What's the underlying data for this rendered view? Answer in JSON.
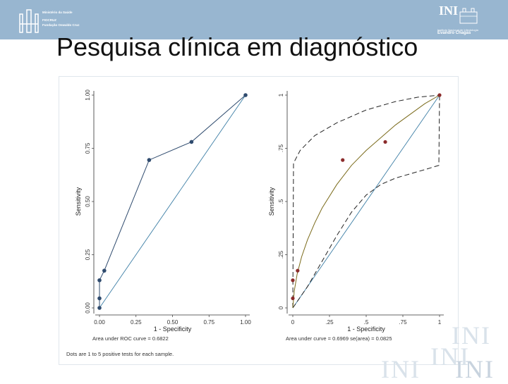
{
  "header": {
    "org_line1": "Ministério da Saúde",
    "org_line2": "FIOCRUZ",
    "org_line3": "Fundação Oswaldo Cruz",
    "ini_logo_text": "INI",
    "ini_caption_line1": "Instituto Nacional de Infectologia",
    "ini_caption_line2": "Evandro Chagas"
  },
  "slide": {
    "title": "Pesquisa clínica em diagnóstico"
  },
  "watermark": {
    "text": "INI"
  },
  "colors": {
    "topbar": "#98b6d0",
    "empirical_line": "#2f4b6e",
    "fitted_curve": "#7a6a1a",
    "points_right": "#8b2b2b",
    "reference_line": "#3e7fa6"
  },
  "chart_data": [
    {
      "type": "line",
      "xlabel": "1 - Specificity",
      "ylabel": "Sensitivity",
      "x_ticks": [
        "0.00",
        "0.25",
        "0.50",
        "0.75",
        "1.00"
      ],
      "y_ticks": [
        "0.00",
        "0.25",
        "0.50",
        "0.75",
        "1.00"
      ],
      "xlim": [
        0,
        1
      ],
      "ylim": [
        0,
        1
      ],
      "points": [
        {
          "x": 0.0,
          "y": 0.0
        },
        {
          "x": 0.0,
          "y": 0.045
        },
        {
          "x": 0.0,
          "y": 0.13
        },
        {
          "x": 0.033,
          "y": 0.175
        },
        {
          "x": 0.34,
          "y": 0.695
        },
        {
          "x": 0.63,
          "y": 0.78
        },
        {
          "x": 1.0,
          "y": 1.0
        }
      ],
      "annotation": "Area under ROC curve = 0.6822",
      "footnote": "Dots are 1 to 5 positive tests for each sample."
    },
    {
      "type": "line",
      "xlabel": "1 - Specificity",
      "ylabel": "Sensitivity",
      "x_ticks": [
        "0",
        ".25",
        ".5",
        ".75",
        "1"
      ],
      "y_ticks": [
        "0",
        ".25",
        ".5",
        ".75",
        "1"
      ],
      "xlim": [
        0,
        1
      ],
      "ylim": [
        0,
        1
      ],
      "points": [
        {
          "x": 0.0,
          "y": 0.045
        },
        {
          "x": 0.0,
          "y": 0.13
        },
        {
          "x": 0.033,
          "y": 0.175
        },
        {
          "x": 0.34,
          "y": 0.695
        },
        {
          "x": 0.63,
          "y": 0.78
        },
        {
          "x": 1.0,
          "y": 1.0
        }
      ],
      "fitted_curve": [
        {
          "x": 0.0,
          "y": 0.0
        },
        {
          "x": 0.01,
          "y": 0.08
        },
        {
          "x": 0.03,
          "y": 0.16
        },
        {
          "x": 0.06,
          "y": 0.24
        },
        {
          "x": 0.1,
          "y": 0.32
        },
        {
          "x": 0.15,
          "y": 0.4
        },
        {
          "x": 0.2,
          "y": 0.47
        },
        {
          "x": 0.3,
          "y": 0.58
        },
        {
          "x": 0.4,
          "y": 0.67
        },
        {
          "x": 0.5,
          "y": 0.74
        },
        {
          "x": 0.6,
          "y": 0.8
        },
        {
          "x": 0.7,
          "y": 0.86
        },
        {
          "x": 0.8,
          "y": 0.91
        },
        {
          "x": 0.9,
          "y": 0.96
        },
        {
          "x": 1.0,
          "y": 1.0
        }
      ],
      "upper_band": [
        {
          "x": 0.0,
          "y": 0.0
        },
        {
          "x": 0.005,
          "y": 0.68
        },
        {
          "x": 0.05,
          "y": 0.74
        },
        {
          "x": 0.15,
          "y": 0.81
        },
        {
          "x": 0.3,
          "y": 0.87
        },
        {
          "x": 0.5,
          "y": 0.93
        },
        {
          "x": 0.7,
          "y": 0.97
        },
        {
          "x": 0.85,
          "y": 0.99
        },
        {
          "x": 1.0,
          "y": 1.0
        }
      ],
      "lower_band": [
        {
          "x": 0.0,
          "y": 0.0
        },
        {
          "x": 0.1,
          "y": 0.1
        },
        {
          "x": 0.2,
          "y": 0.22
        },
        {
          "x": 0.3,
          "y": 0.34
        },
        {
          "x": 0.4,
          "y": 0.45
        },
        {
          "x": 0.5,
          "y": 0.53
        },
        {
          "x": 0.6,
          "y": 0.58
        },
        {
          "x": 0.7,
          "y": 0.61
        },
        {
          "x": 0.8,
          "y": 0.63
        },
        {
          "x": 0.9,
          "y": 0.65
        },
        {
          "x": 0.995,
          "y": 0.67
        },
        {
          "x": 1.0,
          "y": 1.0
        }
      ],
      "annotation": "Area under curve = 0.6969  se(area) = 0.0825"
    }
  ]
}
